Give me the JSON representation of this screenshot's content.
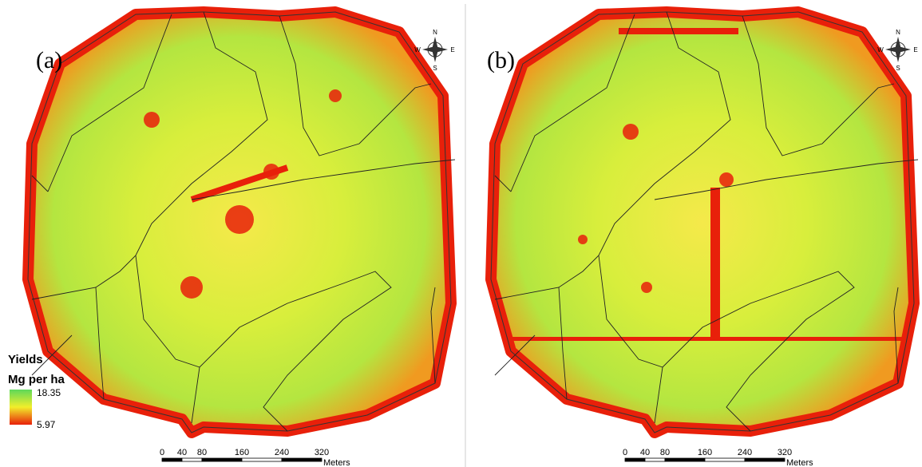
{
  "panels": [
    {
      "label": "(a)",
      "compass": {
        "n": "N",
        "s": "S",
        "e": "E",
        "w": "W"
      },
      "scale": {
        "ticks": [
          0,
          40,
          80,
          160,
          240,
          320
        ],
        "unit": "Meters"
      }
    },
    {
      "label": "(b)",
      "compass": {
        "n": "N",
        "s": "S",
        "e": "E",
        "w": "W"
      },
      "scale": {
        "ticks": [
          0,
          40,
          80,
          160,
          240,
          320
        ],
        "unit": "Meters"
      }
    }
  ],
  "legend": {
    "title": "Yields",
    "unit": "Mg per ha",
    "max": 18.35,
    "min": 5.97
  }
}
